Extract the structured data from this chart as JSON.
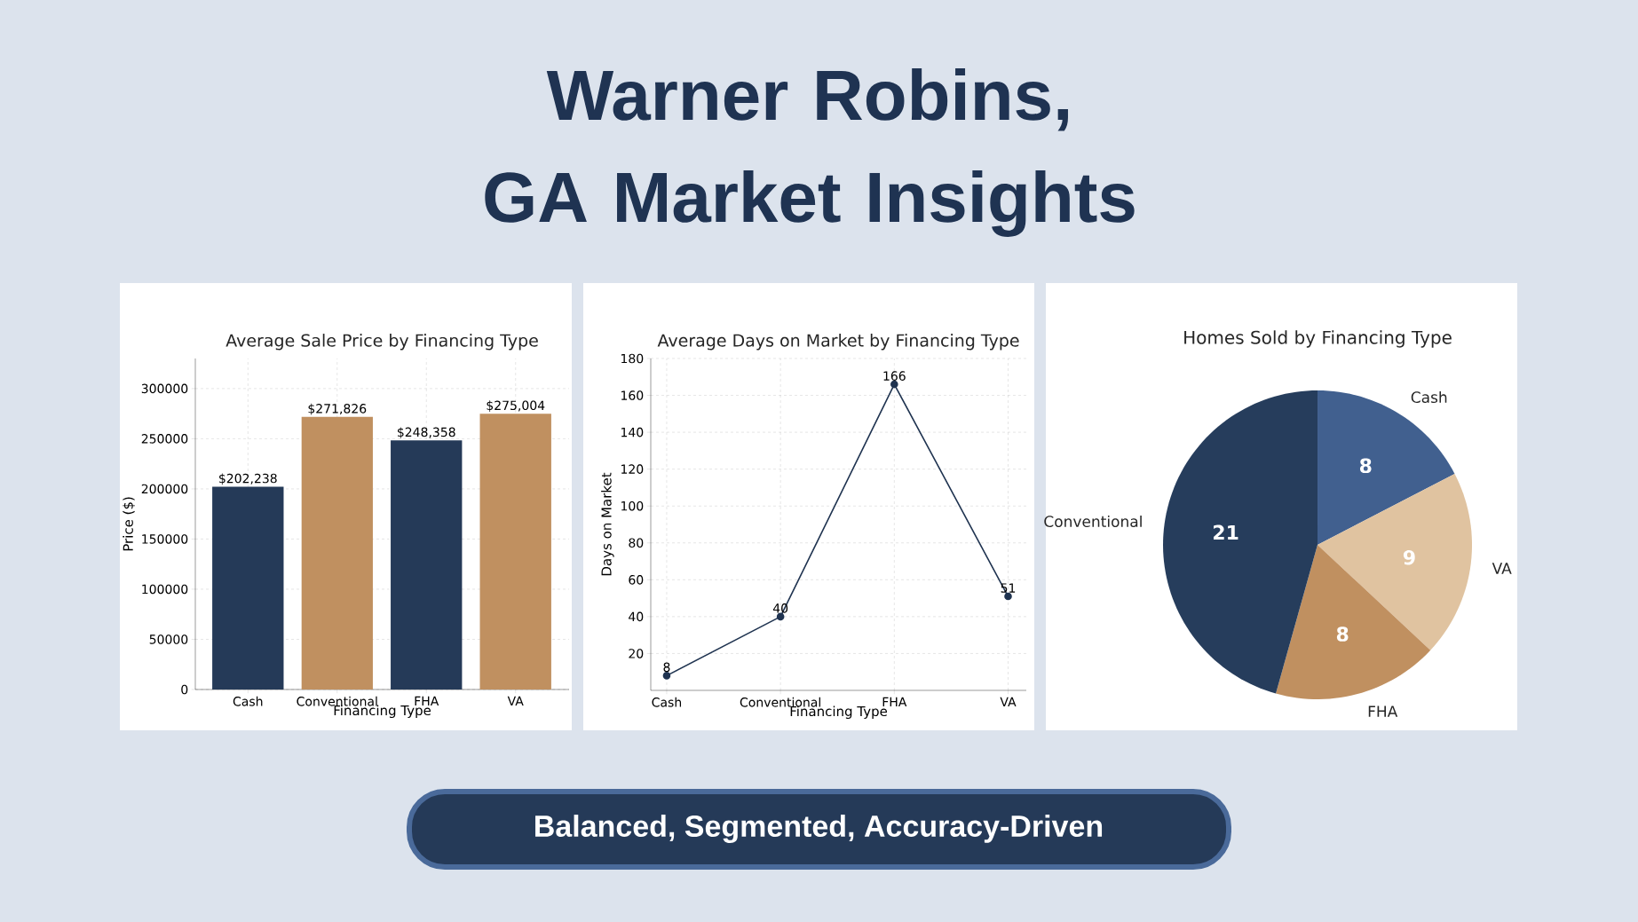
{
  "chart_data": [
    {
      "type": "bar",
      "title": "Average Sale Price by Financing Type",
      "xlabel": "Financing Type",
      "ylabel": "Price ($)",
      "categories": [
        "Cash",
        "Conventional",
        "FHA",
        "VA"
      ],
      "values": [
        202238,
        271826,
        248358,
        275004
      ],
      "colors": [
        "#253a58",
        "#c09060",
        "#253a58",
        "#c09060"
      ],
      "value_labels": [
        "$202,238",
        "$271,826",
        "$248,358",
        "$275,004"
      ],
      "ylim": [
        0,
        330000
      ],
      "yticks": [
        0,
        50000,
        100000,
        150000,
        200000,
        250000,
        300000
      ],
      "grid": true
    },
    {
      "type": "line",
      "title": "Average Days on Market by Financing Type",
      "xlabel": "Financing Type",
      "ylabel": "Days on Market",
      "categories": [
        "Cash",
        "Conventional",
        "FHA",
        "VA"
      ],
      "values": [
        8,
        40,
        166,
        51
      ],
      "color": "#1f3350",
      "ylim": [
        0,
        180
      ],
      "yticks": [
        20,
        40,
        60,
        80,
        100,
        120,
        140,
        160,
        180
      ],
      "grid": true,
      "marker": "circle",
      "line_style": "solid",
      "data_labels": true
    },
    {
      "type": "pie",
      "title": "Homes Sold by Financing Type",
      "categories": [
        "Cash",
        "VA",
        "FHA",
        "Conventional"
      ],
      "values": [
        8,
        9,
        8,
        21
      ],
      "colors": [
        "#41608f",
        "#e0c3a0",
        "#c09060",
        "#263d5c"
      ],
      "data_labels": true
    },
    {
      "type": "other",
      "title": "Warner Robins, GA Market Insights",
      "annotations": [
        "Balanced, Segmented, Accuracy-Driven"
      ]
    }
  ]
}
